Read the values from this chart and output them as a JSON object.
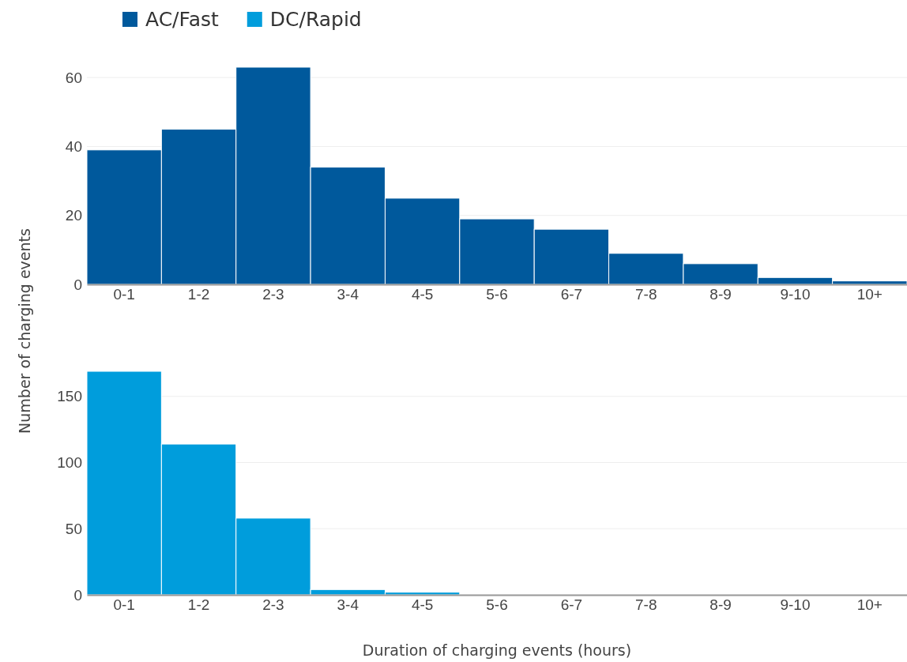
{
  "chart_data": [
    {
      "type": "bar",
      "ylabel": "Number of charging events",
      "categories": [
        "0-1",
        "1-2",
        "2-3",
        "3-4",
        "4-5",
        "5-6",
        "6-7",
        "7-8",
        "8-9",
        "9-10",
        "10+"
      ],
      "series": [
        {
          "name": "AC/Fast",
          "color": "#00599c",
          "values": [
            39,
            45,
            63,
            34,
            25,
            19,
            16,
            9,
            6,
            2,
            1
          ]
        }
      ],
      "ylim": [
        0,
        63
      ],
      "yticks": [
        0,
        20,
        40,
        60
      ],
      "grid": "y",
      "legend": "top left"
    },
    {
      "type": "bar",
      "xlabel": "Duration of charging events (hours)",
      "categories": [
        "0-1",
        "1-2",
        "2-3",
        "3-4",
        "4-5",
        "5-6",
        "6-7",
        "7-8",
        "8-9",
        "9-10",
        "10+"
      ],
      "series": [
        {
          "name": "DC/Rapid",
          "color": "#009ddc",
          "values": [
            169,
            114,
            58,
            4,
            2,
            0,
            0,
            0,
            0,
            0,
            0
          ]
        }
      ],
      "ylim": [
        0,
        169
      ],
      "yticks": [
        0,
        50,
        100,
        150
      ],
      "grid": "y",
      "legend": "top left"
    }
  ]
}
